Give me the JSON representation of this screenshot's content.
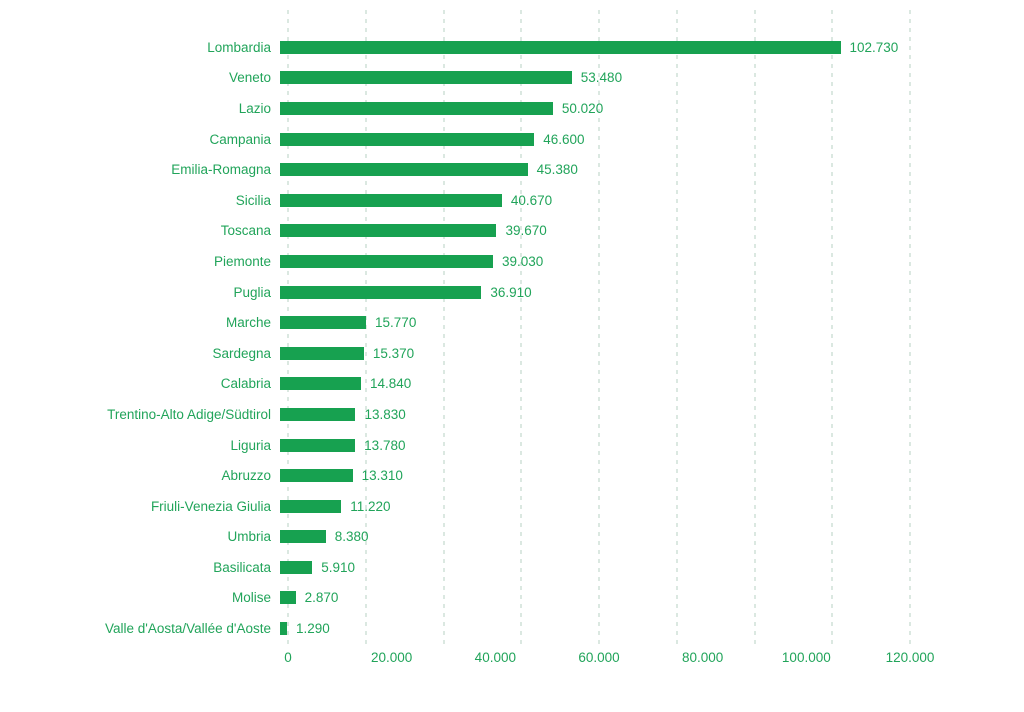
{
  "chart_data": {
    "type": "bar",
    "orientation": "horizontal",
    "title": "",
    "categories": [
      "Lombardia",
      "Veneto",
      "Lazio",
      "Campania",
      "Emilia-Romagna",
      "Sicilia",
      "Toscana",
      "Piemonte",
      "Puglia",
      "Marche",
      "Sardegna",
      "Calabria",
      "Trentino-Alto Adige/Südtirol",
      "Liguria",
      "Abruzzo",
      "Friuli-Venezia Giulia",
      "Umbria",
      "Basilicata",
      "Molise",
      "Valle d'Aosta/Vallée d'Aoste"
    ],
    "values": [
      102730,
      53480,
      50020,
      46600,
      45380,
      40670,
      39670,
      39030,
      36910,
      15770,
      15370,
      14840,
      13830,
      13780,
      13310,
      11220,
      8380,
      5910,
      2870,
      1290
    ],
    "value_labels": [
      "102.730",
      "53.480",
      "50.020",
      "46.600",
      "45.380",
      "40.670",
      "39.670",
      "39.030",
      "36.910",
      "15.770",
      "15.370",
      "14.840",
      "13.830",
      "13.780",
      "13.310",
      "11.220",
      "8.380",
      "5.910",
      "2.870",
      "1.290"
    ],
    "xlabel": "",
    "ylabel": "",
    "x_tick_labels": [
      "0",
      "20.000",
      "40.000",
      "60.000",
      "80.000",
      "100.000",
      "120.000"
    ],
    "xlim": [
      0,
      120000
    ],
    "bar_scale_max": 114000,
    "gridline_count": 9,
    "grid": "dashed-vertical",
    "legend": "none",
    "colors": {
      "bar": "#17A150",
      "text": "#21A45A",
      "gridline": "#B7D2C3",
      "background": "#FFFFFF"
    }
  }
}
